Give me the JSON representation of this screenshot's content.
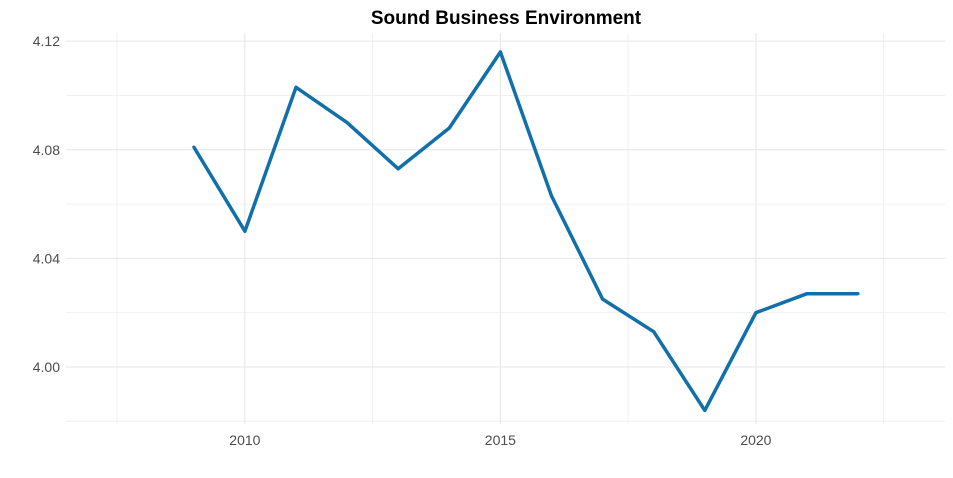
{
  "chart_data": {
    "type": "line",
    "title": "Sound Business Environment",
    "xlabel": "",
    "ylabel": "",
    "x": [
      2009,
      2010,
      2011,
      2012,
      2013,
      2014,
      2015,
      2016,
      2017,
      2018,
      2019,
      2020,
      2021,
      2022
    ],
    "series": [
      {
        "values": [
          4.081,
          4.05,
          4.103,
          4.09,
          4.073,
          4.088,
          4.116,
          4.063,
          4.025,
          4.013,
          3.984,
          4.02,
          4.027,
          4.027
        ],
        "color": "#1170aa"
      }
    ],
    "xlim": [
      2006.5,
      2023.7
    ],
    "ylim": [
      3.979,
      4.123
    ],
    "x_ticks": [
      2010,
      2015,
      2020
    ],
    "x_tick_labels": [
      "2010",
      "2015",
      "2020"
    ],
    "y_ticks": [
      4.0,
      4.04,
      4.08,
      4.12
    ],
    "y_tick_labels": [
      "4.00",
      "4.04",
      "4.08",
      "4.12"
    ],
    "grid": true,
    "legend": "none"
  }
}
